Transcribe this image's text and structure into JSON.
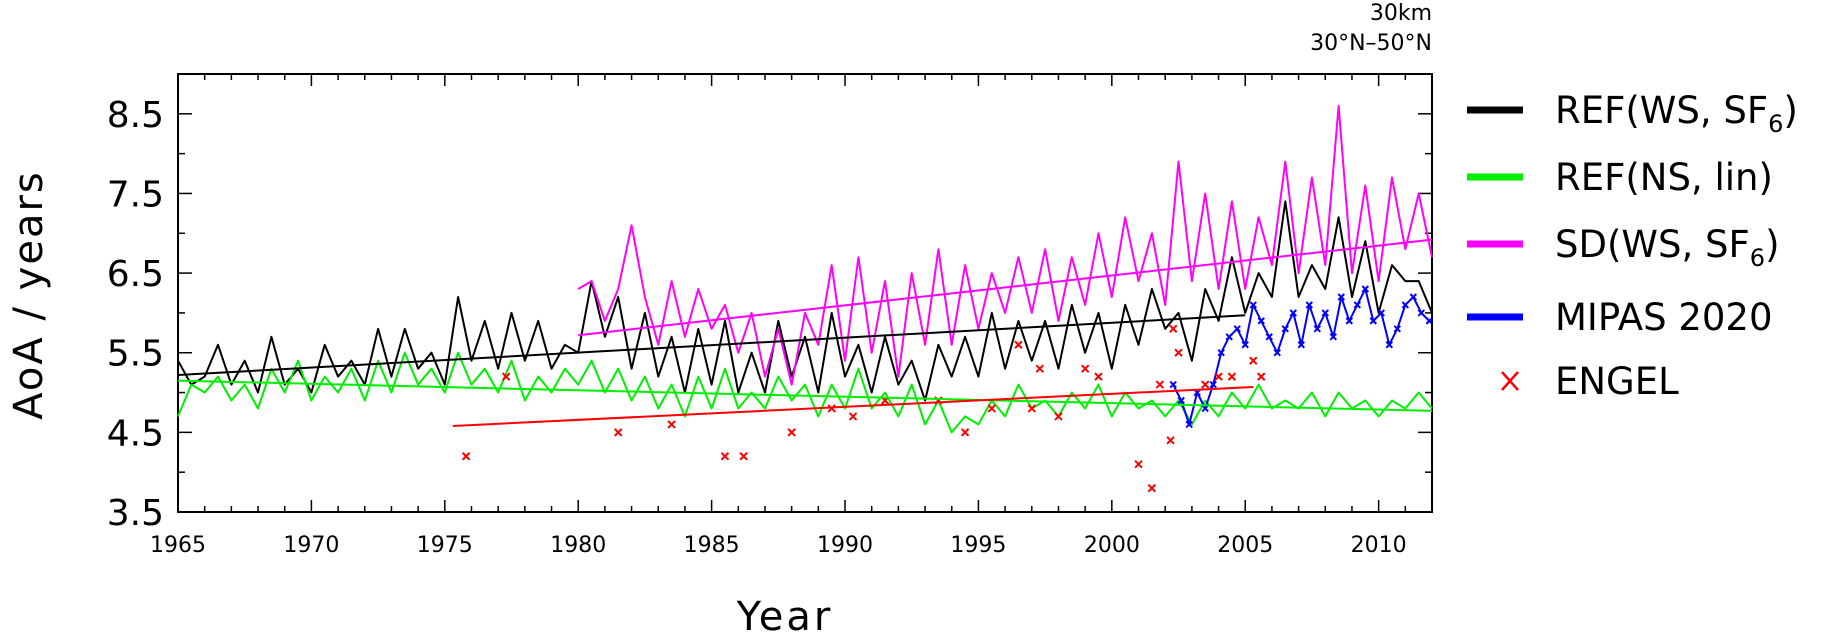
{
  "chart_data": {
    "type": "line",
    "annotations": [
      "30km",
      "30°N–50°N"
    ],
    "xlabel": "Year",
    "ylabel": "AoA / years",
    "xlim": [
      1965,
      2012
    ],
    "ylim": [
      3.5,
      9.0
    ],
    "x_ticks": [
      1965,
      1970,
      1975,
      1980,
      1985,
      1990,
      1995,
      2000,
      2005,
      2010
    ],
    "y_ticks": [
      3.5,
      4.5,
      5.5,
      6.5,
      7.5,
      8.5
    ],
    "legend_position": "right",
    "series": [
      {
        "name": "REF(WS, SF6)",
        "name_main": "REF(WS, SF",
        "name_sub": "6",
        "name_end": ")",
        "color": "#000000",
        "style": "line",
        "x": [
          1965.0,
          1965.5,
          1966.0,
          1966.5,
          1967.0,
          1967.5,
          1968.0,
          1968.5,
          1969.0,
          1969.5,
          1970.0,
          1970.5,
          1971.0,
          1971.5,
          1972.0,
          1972.5,
          1973.0,
          1973.5,
          1974.0,
          1974.5,
          1975.0,
          1975.5,
          1976.0,
          1976.5,
          1977.0,
          1977.5,
          1978.0,
          1978.5,
          1979.0,
          1979.5,
          1980.0,
          1980.5,
          1981.0,
          1981.5,
          1982.0,
          1982.5,
          1983.0,
          1983.5,
          1984.0,
          1984.5,
          1985.0,
          1985.5,
          1986.0,
          1986.5,
          1987.0,
          1987.5,
          1988.0,
          1988.5,
          1989.0,
          1989.5,
          1990.0,
          1990.5,
          1991.0,
          1991.5,
          1992.0,
          1992.5,
          1993.0,
          1993.5,
          1994.0,
          1994.5,
          1995.0,
          1995.5,
          1996.0,
          1996.5,
          1997.0,
          1997.5,
          1998.0,
          1998.5,
          1999.0,
          1999.5,
          2000.0,
          2000.5,
          2001.0,
          2001.5,
          2002.0,
          2002.5,
          2003.0,
          2003.5,
          2004.0,
          2004.5,
          2005.0,
          2005.5,
          2006.0,
          2006.5,
          2007.0,
          2007.5,
          2008.0,
          2008.5,
          2009.0,
          2009.5,
          2010.0,
          2010.5,
          2011.0,
          2011.5,
          2012.0
        ],
        "values": [
          5.4,
          5.1,
          5.2,
          5.6,
          5.1,
          5.4,
          5.0,
          5.7,
          5.1,
          5.3,
          5.0,
          5.6,
          5.2,
          5.4,
          5.1,
          5.8,
          5.2,
          5.8,
          5.3,
          5.5,
          5.1,
          6.2,
          5.4,
          5.9,
          5.3,
          6.0,
          5.4,
          5.9,
          5.3,
          5.6,
          5.5,
          6.4,
          5.7,
          6.2,
          5.3,
          6.0,
          5.2,
          5.7,
          5.0,
          5.8,
          5.1,
          5.9,
          5.0,
          5.5,
          5.0,
          5.9,
          5.2,
          5.7,
          5.0,
          6.0,
          5.2,
          5.6,
          5.0,
          5.7,
          5.1,
          5.4,
          4.9,
          5.6,
          5.2,
          5.7,
          5.2,
          6.0,
          5.3,
          5.9,
          5.4,
          5.9,
          5.3,
          6.1,
          5.5,
          6.0,
          5.3,
          6.1,
          5.6,
          6.3,
          5.8,
          6.0,
          5.4,
          6.3,
          5.9,
          6.7,
          6.0,
          6.5,
          6.2,
          7.4,
          6.2,
          6.6,
          6.3,
          7.2,
          6.2,
          6.9,
          6.0,
          6.6,
          6.4,
          6.4,
          6.0
        ],
        "trend": {
          "x": [
            1965,
            2005
          ],
          "y": [
            5.22,
            5.97
          ]
        }
      },
      {
        "name": "REF(NS, lin)",
        "name_main": "REF(NS, lin)",
        "name_sub": "",
        "name_end": "",
        "color": "#00ee00",
        "style": "line",
        "x": [
          1965.0,
          1965.5,
          1966.0,
          1966.5,
          1967.0,
          1967.5,
          1968.0,
          1968.5,
          1969.0,
          1969.5,
          1970.0,
          1970.5,
          1971.0,
          1971.5,
          1972.0,
          1972.5,
          1973.0,
          1973.5,
          1974.0,
          1974.5,
          1975.0,
          1975.5,
          1976.0,
          1976.5,
          1977.0,
          1977.5,
          1978.0,
          1978.5,
          1979.0,
          1979.5,
          1980.0,
          1980.5,
          1981.0,
          1981.5,
          1982.0,
          1982.5,
          1983.0,
          1983.5,
          1984.0,
          1984.5,
          1985.0,
          1985.5,
          1986.0,
          1986.5,
          1987.0,
          1987.5,
          1988.0,
          1988.5,
          1989.0,
          1989.5,
          1990.0,
          1990.5,
          1991.0,
          1991.5,
          1992.0,
          1992.5,
          1993.0,
          1993.5,
          1994.0,
          1994.5,
          1995.0,
          1995.5,
          1996.0,
          1996.5,
          1997.0,
          1997.5,
          1998.0,
          1998.5,
          1999.0,
          1999.5,
          2000.0,
          2000.5,
          2001.0,
          2001.5,
          2002.0,
          2002.5,
          2003.0,
          2003.5,
          2004.0,
          2004.5,
          2005.0,
          2005.5,
          2006.0,
          2006.5,
          2007.0,
          2007.5,
          2008.0,
          2008.5,
          2009.0,
          2009.5,
          2010.0,
          2010.5,
          2011.0,
          2011.5,
          2012.0
        ],
        "values": [
          4.7,
          5.1,
          5.0,
          5.2,
          4.9,
          5.1,
          4.8,
          5.3,
          5.0,
          5.4,
          4.9,
          5.2,
          5.0,
          5.3,
          4.9,
          5.4,
          5.0,
          5.5,
          5.1,
          5.3,
          5.0,
          5.5,
          5.1,
          5.3,
          5.0,
          5.4,
          4.9,
          5.2,
          5.0,
          5.3,
          5.1,
          5.4,
          5.0,
          5.3,
          4.9,
          5.2,
          4.8,
          5.1,
          4.7,
          5.2,
          4.8,
          5.3,
          4.8,
          5.0,
          4.8,
          5.2,
          4.9,
          5.1,
          4.7,
          5.1,
          4.8,
          5.3,
          4.8,
          5.0,
          4.7,
          5.1,
          4.6,
          4.9,
          4.5,
          4.7,
          4.6,
          4.9,
          4.7,
          5.1,
          4.8,
          4.9,
          4.7,
          5.0,
          4.8,
          5.1,
          4.7,
          5.0,
          4.8,
          4.9,
          4.7,
          4.9,
          4.6,
          4.9,
          4.7,
          5.0,
          4.8,
          5.1,
          4.8,
          4.9,
          4.8,
          5.0,
          4.7,
          5.0,
          4.8,
          4.9,
          4.7,
          4.9,
          4.8,
          5.0,
          4.8
        ],
        "trend": {
          "x": [
            1965,
            2012
          ],
          "y": [
            5.15,
            4.77
          ]
        }
      },
      {
        "name": "SD(WS, SF6)",
        "name_main": "SD(WS, SF",
        "name_sub": "6",
        "name_end": ")",
        "color": "#ff00ff",
        "style": "line",
        "x": [
          1980.0,
          1980.5,
          1981.0,
          1981.5,
          1982.0,
          1982.5,
          1983.0,
          1983.5,
          1984.0,
          1984.5,
          1985.0,
          1985.5,
          1986.0,
          1986.5,
          1987.0,
          1987.5,
          1988.0,
          1988.5,
          1989.0,
          1989.5,
          1990.0,
          1990.5,
          1991.0,
          1991.5,
          1992.0,
          1992.5,
          1993.0,
          1993.5,
          1994.0,
          1994.5,
          1995.0,
          1995.5,
          1996.0,
          1996.5,
          1997.0,
          1997.5,
          1998.0,
          1998.5,
          1999.0,
          1999.5,
          2000.0,
          2000.5,
          2001.0,
          2001.5,
          2002.0,
          2002.5,
          2003.0,
          2003.5,
          2004.0,
          2004.5,
          2005.0,
          2005.5,
          2006.0,
          2006.5,
          2007.0,
          2007.5,
          2008.0,
          2008.5,
          2009.0,
          2009.5,
          2010.0,
          2010.5,
          2011.0,
          2011.5,
          2012.0
        ],
        "values": [
          6.3,
          6.4,
          5.9,
          6.3,
          7.1,
          6.2,
          5.6,
          6.4,
          5.7,
          6.3,
          5.8,
          6.1,
          5.5,
          6.0,
          5.2,
          5.8,
          5.1,
          6.0,
          5.6,
          6.6,
          5.4,
          6.7,
          5.5,
          6.4,
          5.2,
          6.5,
          5.6,
          6.8,
          5.6,
          6.6,
          5.8,
          6.5,
          6.0,
          6.7,
          6.0,
          6.8,
          5.9,
          6.7,
          6.1,
          7.0,
          6.2,
          7.2,
          6.4,
          7.0,
          6.1,
          7.9,
          6.4,
          7.5,
          6.3,
          7.4,
          6.3,
          7.2,
          6.6,
          7.9,
          6.5,
          7.7,
          6.6,
          8.6,
          6.5,
          7.6,
          6.4,
          7.7,
          6.8,
          7.5,
          6.7
        ],
        "trend": {
          "x": [
            1980,
            2012
          ],
          "y": [
            5.72,
            6.92
          ]
        }
      },
      {
        "name": "MIPAS 2020",
        "name_main": "MIPAS 2020",
        "name_sub": "",
        "name_end": "",
        "color": "#0000ff",
        "style": "line-markers",
        "x": [
          2002.3,
          2002.6,
          2002.9,
          2003.2,
          2003.5,
          2003.8,
          2004.1,
          2004.4,
          2004.7,
          2005.0,
          2005.3,
          2005.6,
          2005.9,
          2006.2,
          2006.5,
          2006.8,
          2007.1,
          2007.4,
          2007.7,
          2008.0,
          2008.3,
          2008.6,
          2008.9,
          2009.2,
          2009.5,
          2009.8,
          2010.1,
          2010.4,
          2010.7,
          2011.0,
          2011.3,
          2011.6,
          2011.9
        ],
        "values": [
          5.1,
          4.9,
          4.6,
          5.0,
          4.8,
          5.1,
          5.5,
          5.7,
          5.8,
          5.6,
          6.1,
          5.9,
          5.7,
          5.5,
          5.8,
          6.0,
          5.6,
          6.1,
          5.8,
          6.0,
          5.7,
          6.2,
          5.9,
          6.1,
          6.3,
          5.9,
          6.0,
          5.6,
          5.8,
          6.1,
          6.2,
          6.0,
          5.9
        ]
      },
      {
        "name": "ENGEL",
        "name_main": "ENGEL",
        "name_sub": "",
        "name_end": "",
        "color": "#ff0000",
        "style": "markers",
        "marker": "x",
        "x": [
          1975.8,
          1977.3,
          1981.5,
          1983.5,
          1985.5,
          1986.2,
          1988.0,
          1989.5,
          1990.3,
          1991.5,
          1993.5,
          1994.5,
          1995.5,
          1996.5,
          1997.0,
          1997.3,
          1998.0,
          1999.0,
          1999.5,
          2001.0,
          2001.5,
          2001.8,
          2002.2,
          2002.3,
          2002.5,
          2003.5,
          2004.0,
          2004.5,
          2005.3,
          2005.6
        ],
        "values": [
          4.2,
          5.2,
          4.5,
          4.6,
          4.2,
          4.2,
          4.5,
          4.8,
          4.7,
          4.9,
          4.9,
          4.5,
          4.8,
          5.6,
          4.8,
          5.3,
          4.7,
          5.3,
          5.2,
          4.1,
          3.8,
          5.1,
          4.4,
          5.8,
          5.5,
          5.1,
          5.2,
          5.2,
          5.4,
          5.2
        ],
        "trend": {
          "x": [
            1975.3,
            2005.3
          ],
          "y": [
            4.58,
            5.07
          ]
        }
      }
    ]
  }
}
